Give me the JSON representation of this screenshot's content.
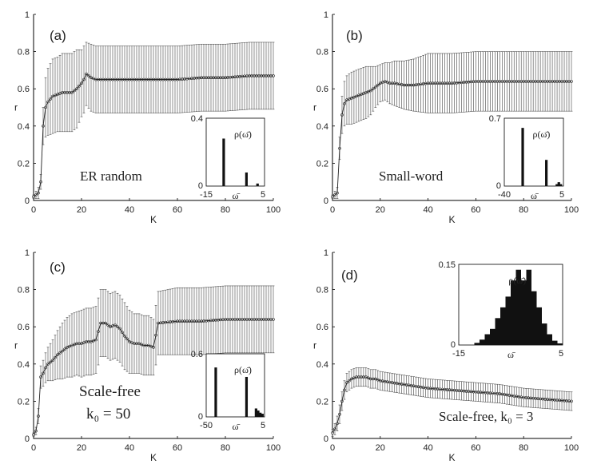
{
  "chart_data": [
    {
      "type": "line",
      "panel_label": "(a)",
      "xlabel": "K",
      "ylabel": "r",
      "xlim": [
        0,
        100
      ],
      "ylim": [
        0,
        1
      ],
      "xticks": [
        "0",
        "20",
        "40",
        "60",
        "80",
        "100"
      ],
      "yticks": [
        "0",
        "0.2",
        "0.4",
        "0.6",
        "0.8",
        "1"
      ],
      "annotation": [
        "ER random"
      ],
      "series": [
        {
          "name": "mean r with std error bars",
          "x": [
            0,
            1,
            2,
            3,
            4,
            5,
            6,
            8,
            10,
            12,
            14,
            16,
            18,
            20,
            21,
            22,
            24,
            26,
            30,
            40,
            50,
            60,
            70,
            80,
            90,
            100
          ],
          "y": [
            0.02,
            0.03,
            0.04,
            0.1,
            0.4,
            0.5,
            0.53,
            0.56,
            0.57,
            0.58,
            0.58,
            0.58,
            0.6,
            0.63,
            0.65,
            0.68,
            0.66,
            0.65,
            0.65,
            0.65,
            0.65,
            0.65,
            0.66,
            0.66,
            0.67,
            0.67
          ],
          "err": [
            0.01,
            0.02,
            0.03,
            0.04,
            0.1,
            0.16,
            0.18,
            0.2,
            0.2,
            0.21,
            0.21,
            0.21,
            0.21,
            0.18,
            0.18,
            0.17,
            0.18,
            0.18,
            0.18,
            0.18,
            0.18,
            0.18,
            0.18,
            0.18,
            0.18,
            0.18
          ]
        }
      ],
      "inset": {
        "type": "bar",
        "ylabel": "ρ(ω̄)",
        "xlabel": "ω̄",
        "xlim": [
          -15,
          5
        ],
        "xtick_labels": [
          "-15",
          "5"
        ],
        "ylim": [
          0,
          0.4
        ],
        "ytick_labels": [
          "0",
          "0.4"
        ],
        "bars": [
          {
            "x": -9,
            "value": 0.28
          },
          {
            "x": -1.2,
            "value": 0.08
          },
          {
            "x": 2.6,
            "value": 0.015
          }
        ]
      }
    },
    {
      "type": "line",
      "panel_label": "(b)",
      "xlabel": "K",
      "ylabel": "r",
      "xlim": [
        0,
        100
      ],
      "ylim": [
        0,
        1
      ],
      "xticks": [
        "0",
        "20",
        "40",
        "60",
        "80",
        "100"
      ],
      "yticks": [
        "0",
        "0.2",
        "0.4",
        "0.6",
        "0.8",
        "1"
      ],
      "annotation": [
        "Small-word"
      ],
      "series": [
        {
          "name": "mean r with std error bars",
          "x": [
            0,
            1,
            2,
            3,
            4,
            5,
            6,
            8,
            10,
            12,
            14,
            16,
            18,
            20,
            22,
            24,
            26,
            30,
            34,
            40,
            50,
            60,
            70,
            80,
            90,
            100
          ],
          "y": [
            0.02,
            0.03,
            0.04,
            0.28,
            0.46,
            0.52,
            0.54,
            0.55,
            0.56,
            0.57,
            0.58,
            0.59,
            0.61,
            0.63,
            0.64,
            0.63,
            0.63,
            0.62,
            0.62,
            0.63,
            0.63,
            0.64,
            0.64,
            0.64,
            0.64,
            0.64
          ],
          "err": [
            0.01,
            0.02,
            0.03,
            0.06,
            0.1,
            0.12,
            0.13,
            0.14,
            0.14,
            0.14,
            0.14,
            0.13,
            0.11,
            0.1,
            0.1,
            0.11,
            0.12,
            0.13,
            0.14,
            0.16,
            0.16,
            0.16,
            0.16,
            0.16,
            0.16,
            0.16
          ]
        }
      ],
      "inset": {
        "type": "bar",
        "ylabel": "ρ(ω̄)",
        "xlabel": "ω̄",
        "xlim": [
          -40,
          5
        ],
        "xtick_labels": [
          "-40",
          "5"
        ],
        "ylim": [
          0,
          0.7
        ],
        "ytick_labels": [
          "0",
          "0.7"
        ],
        "bars": [
          {
            "x": -26,
            "value": 0.6
          },
          {
            "x": -8,
            "value": 0.27
          },
          {
            "x": 0,
            "value": 0.02
          },
          {
            "x": 1.5,
            "value": 0.04
          },
          {
            "x": 3,
            "value": 0.02
          }
        ]
      }
    },
    {
      "type": "line",
      "panel_label": "(c)",
      "xlabel": "K",
      "ylabel": "r",
      "xlim": [
        0,
        100
      ],
      "ylim": [
        0,
        1
      ],
      "xticks": [
        "0",
        "20",
        "40",
        "60",
        "80",
        "100"
      ],
      "yticks": [
        "0",
        "0.2",
        "0.4",
        "0.6",
        "0.8",
        "1"
      ],
      "annotation": [
        "Scale-free",
        "k₀ = 50"
      ],
      "series": [
        {
          "name": "mean r with std error bars",
          "x": [
            0,
            1,
            2,
            3,
            4,
            5,
            6,
            8,
            10,
            12,
            14,
            16,
            18,
            20,
            22,
            24,
            26,
            28,
            30,
            32,
            34,
            36,
            38,
            40,
            42,
            44,
            46,
            48,
            50,
            52,
            60,
            70,
            80,
            90,
            100
          ],
          "y": [
            0.02,
            0.04,
            0.12,
            0.33,
            0.35,
            0.38,
            0.4,
            0.42,
            0.45,
            0.47,
            0.49,
            0.5,
            0.51,
            0.51,
            0.52,
            0.52,
            0.53,
            0.62,
            0.62,
            0.6,
            0.61,
            0.59,
            0.55,
            0.52,
            0.51,
            0.51,
            0.5,
            0.5,
            0.49,
            0.62,
            0.63,
            0.63,
            0.64,
            0.64,
            0.64
          ],
          "err": [
            0.01,
            0.02,
            0.04,
            0.06,
            0.07,
            0.08,
            0.09,
            0.11,
            0.13,
            0.15,
            0.16,
            0.17,
            0.17,
            0.18,
            0.18,
            0.18,
            0.18,
            0.18,
            0.18,
            0.18,
            0.18,
            0.18,
            0.18,
            0.17,
            0.16,
            0.16,
            0.16,
            0.16,
            0.15,
            0.17,
            0.18,
            0.18,
            0.18,
            0.18,
            0.18
          ]
        }
      ],
      "inset": {
        "type": "bar",
        "ylabel": "ρ(ω̄)",
        "xlabel": "ω̄",
        "xlim": [
          -50,
          5
        ],
        "xtick_labels": [
          "-50",
          "5"
        ],
        "ylim": [
          0,
          0.6
        ],
        "ytick_labels": [
          "0",
          "0.6"
        ],
        "bars": [
          {
            "x": -41,
            "value": 0.47
          },
          {
            "x": -12,
            "value": 0.38
          },
          {
            "x": -3,
            "value": 0.08
          },
          {
            "x": -1,
            "value": 0.06
          },
          {
            "x": 1,
            "value": 0.04
          },
          {
            "x": 3,
            "value": 0.03
          }
        ]
      }
    },
    {
      "type": "line",
      "panel_label": "(d)",
      "xlabel": "K",
      "ylabel": "r",
      "xlim": [
        0,
        100
      ],
      "ylim": [
        0,
        1
      ],
      "xticks": [
        "0",
        "20",
        "40",
        "60",
        "80",
        "100"
      ],
      "yticks": [
        "0",
        "0.2",
        "0.4",
        "0.6",
        "0.8",
        "1"
      ],
      "annotation": [
        "Scale-free, k₀ = 3"
      ],
      "series": [
        {
          "name": "mean r with std error bars",
          "x": [
            0,
            1,
            2,
            3,
            4,
            5,
            6,
            8,
            10,
            12,
            14,
            16,
            18,
            20,
            30,
            40,
            50,
            60,
            70,
            80,
            90,
            100
          ],
          "y": [
            0.03,
            0.05,
            0.08,
            0.13,
            0.2,
            0.26,
            0.3,
            0.32,
            0.33,
            0.33,
            0.33,
            0.32,
            0.32,
            0.31,
            0.29,
            0.27,
            0.26,
            0.25,
            0.24,
            0.22,
            0.21,
            0.2
          ],
          "err": [
            0.02,
            0.03,
            0.04,
            0.05,
            0.05,
            0.05,
            0.05,
            0.05,
            0.05,
            0.05,
            0.05,
            0.05,
            0.05,
            0.05,
            0.05,
            0.05,
            0.05,
            0.05,
            0.05,
            0.05,
            0.05,
            0.05
          ]
        }
      ],
      "inset": {
        "type": "bar",
        "ylabel": "ρ(ω̄)",
        "xlabel": "ω̄",
        "xlim": [
          -15,
          5
        ],
        "xtick_labels": [
          "-15",
          "5"
        ],
        "ylim": [
          0,
          0.15
        ],
        "ytick_labels": [
          "0",
          "0.15"
        ],
        "bars": [
          {
            "x": -11.5,
            "value": 0.004
          },
          {
            "x": -10.5,
            "value": 0.01
          },
          {
            "x": -9.5,
            "value": 0.02
          },
          {
            "x": -8.5,
            "value": 0.03
          },
          {
            "x": -7.5,
            "value": 0.05
          },
          {
            "x": -6.5,
            "value": 0.07
          },
          {
            "x": -5.5,
            "value": 0.09
          },
          {
            "x": -4.5,
            "value": 0.12
          },
          {
            "x": -3.5,
            "value": 0.14
          },
          {
            "x": -2.5,
            "value": 0.12
          },
          {
            "x": -1.5,
            "value": 0.14
          },
          {
            "x": -0.5,
            "value": 0.1
          },
          {
            "x": 0.5,
            "value": 0.07
          },
          {
            "x": 1.5,
            "value": 0.04
          },
          {
            "x": 2.5,
            "value": 0.02
          },
          {
            "x": 3.5,
            "value": 0.008
          },
          {
            "x": 4.5,
            "value": 0.003
          }
        ]
      }
    }
  ]
}
